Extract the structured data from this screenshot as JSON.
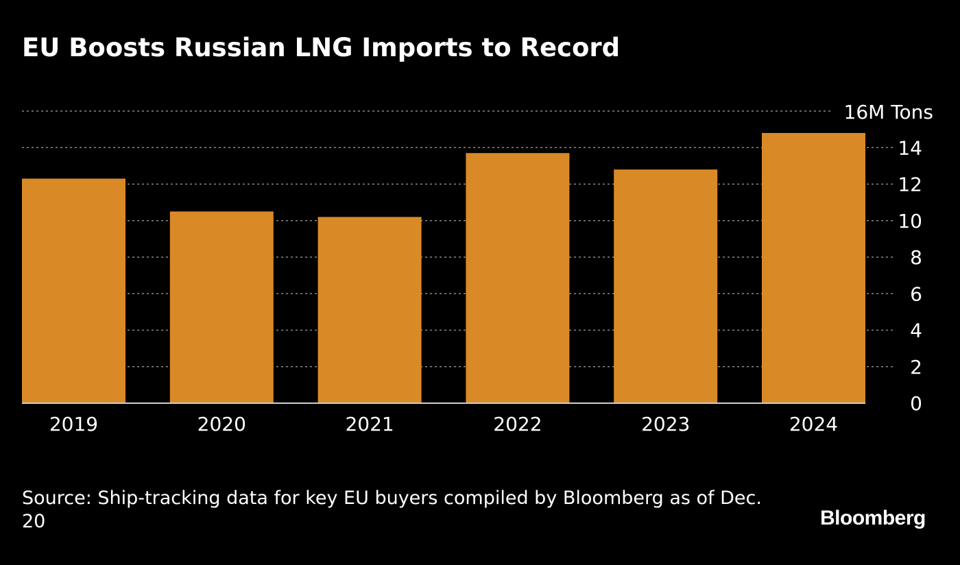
{
  "chart_data": {
    "type": "bar",
    "title": "EU Boosts Russian LNG Imports to Record",
    "categories": [
      "2019",
      "2020",
      "2021",
      "2022",
      "2023",
      "2024"
    ],
    "values": [
      12.3,
      10.5,
      10.2,
      13.7,
      12.8,
      14.8
    ],
    "unit_label": "16M Tons",
    "ylim": [
      0,
      16
    ],
    "yticks": [
      "0",
      "2",
      "4",
      "6",
      "8",
      "10",
      "12",
      "14"
    ],
    "grid": true,
    "y_axis_side": "right",
    "bar_color": "#d98a27",
    "background_color": "#000000"
  },
  "source": "Source: Ship-tracking data for key EU buyers compiled by Bloomberg as of Dec. 20",
  "brand": "Bloomberg"
}
